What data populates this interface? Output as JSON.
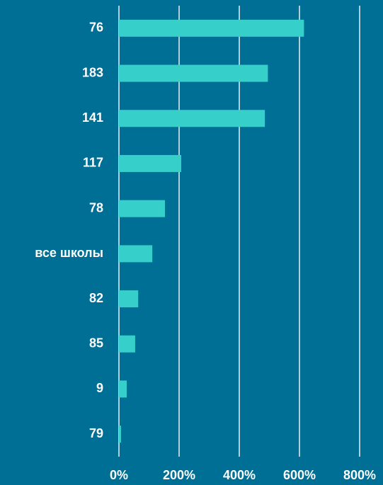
{
  "chart_data": {
    "type": "hbar",
    "categories": [
      "76",
      "183",
      "141",
      "117",
      "78",
      "все школы",
      "82",
      "85",
      "9",
      "79"
    ],
    "values": [
      615,
      495,
      485,
      207,
      153,
      111,
      64,
      54,
      26,
      7
    ],
    "color": "#36cfc9",
    "xlim": [
      0,
      800
    ],
    "xticks": [
      {
        "value": 0,
        "label": "0%"
      },
      {
        "value": 200,
        "label": "200%"
      },
      {
        "value": 400,
        "label": "400%"
      },
      {
        "value": 600,
        "label": "600%"
      },
      {
        "value": 800,
        "label": "800%"
      }
    ],
    "grid": true
  }
}
